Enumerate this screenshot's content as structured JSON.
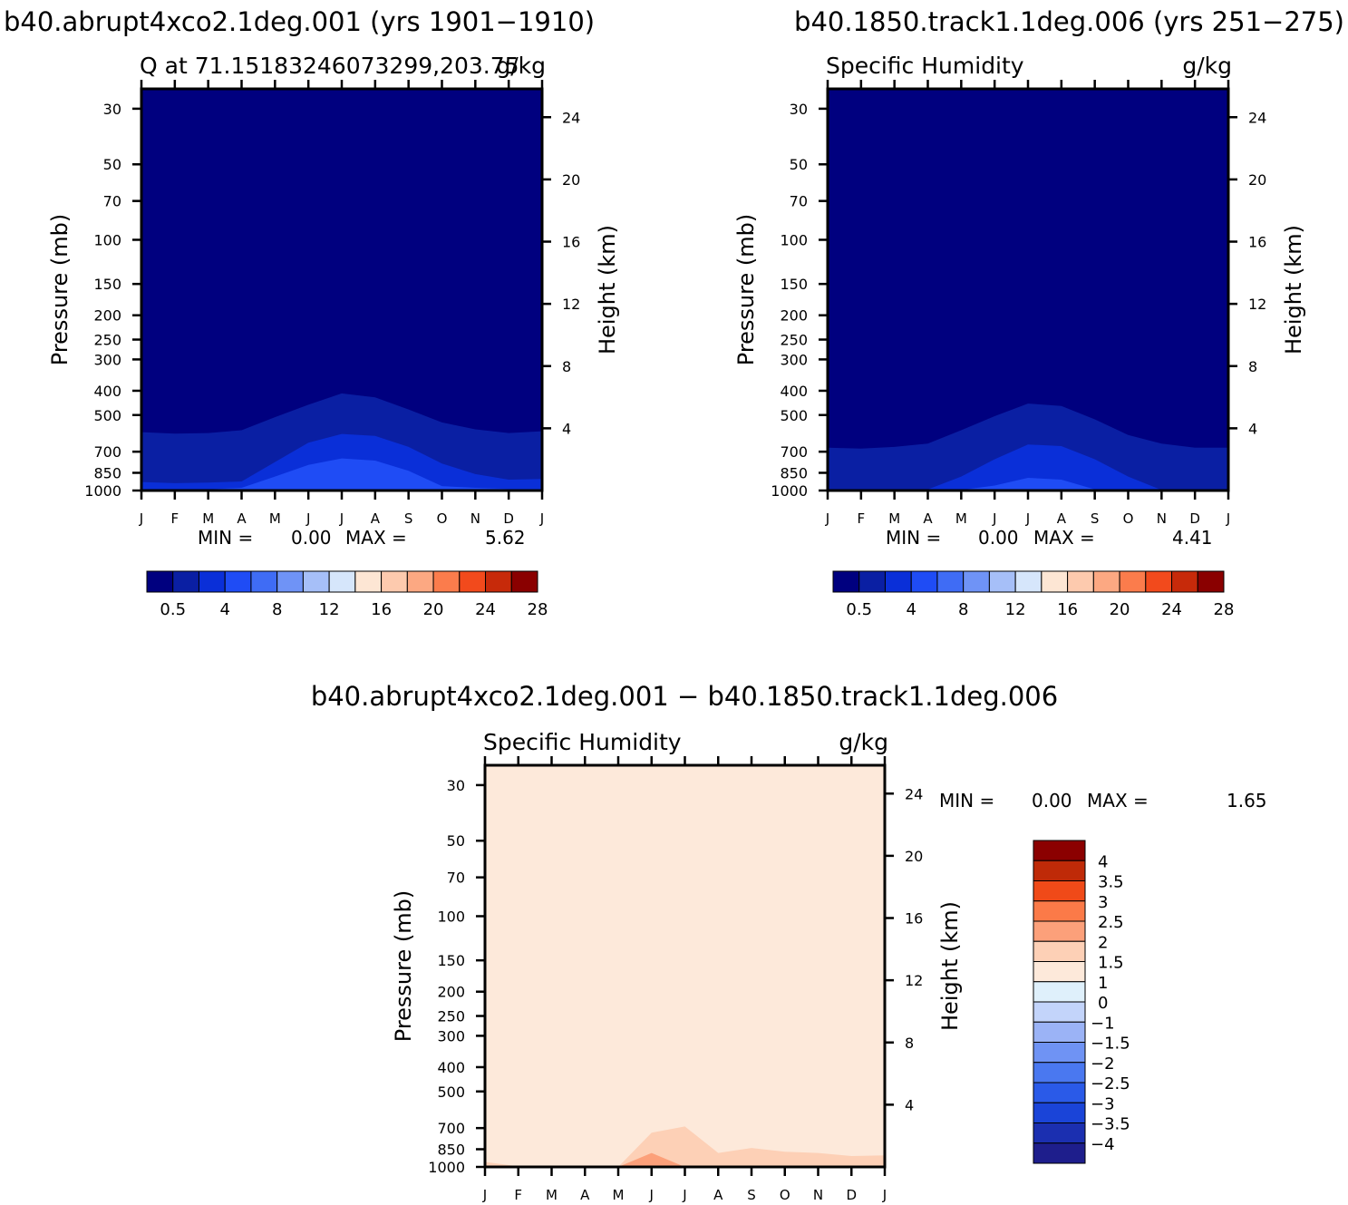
{
  "titles": {
    "left_header": "b40.abrupt4xco2.1deg.001 (yrs 1901−1910)",
    "right_header": "b40.1850.track1.1deg.006 (yrs 251−275)",
    "diff_header": "b40.abrupt4xco2.1deg.001 − b40.1850.track1.1deg.006"
  },
  "colors": {
    "background": "#ffffff",
    "axis": "#000000",
    "top_scale": [
      "#00007f",
      "#0a1fa3",
      "#0a2fd8",
      "#1f4cf5",
      "#3f6cf5",
      "#6f93f6",
      "#a6bff8",
      "#d6e6fb",
      "#fde6d4",
      "#fdcaae",
      "#fca882",
      "#fb7c4c",
      "#f24a1c",
      "#c72a0a",
      "#8a0000"
    ],
    "diff_scale": [
      "#1e1e8c",
      "#1b2fb0",
      "#1a44d8",
      "#2a5ae8",
      "#4a78f0",
      "#6f93f4",
      "#9bb3f6",
      "#c3d4fa",
      "#dff0fb",
      "#fde9da",
      "#fdd0b6",
      "#fca07a",
      "#fb7a48",
      "#f04a18",
      "#bf2a08",
      "#8b0000"
    ]
  },
  "chart_data": [
    {
      "id": "left",
      "type": "heatmap",
      "title": "Q at 71.15183246073299,203.75",
      "units": "g/kg",
      "ylabel": "Pressure (mb)",
      "ylabel_right": "Height (km)",
      "x_ticks": [
        "J",
        "F",
        "M",
        "A",
        "M",
        "J",
        "J",
        "A",
        "S",
        "O",
        "N",
        "D",
        "J"
      ],
      "y_ticks": [
        30,
        50,
        70,
        100,
        150,
        200,
        250,
        300,
        400,
        500,
        700,
        850,
        1000
      ],
      "y_scale": "log",
      "ylim": [
        1000,
        25
      ],
      "height_ticks": [
        4,
        8,
        12,
        16,
        20,
        24
      ],
      "min_label": "MIN =",
      "min_value": "0.00",
      "max_label": "MAX =",
      "max_value": "5.62",
      "fill_levels": [
        {
          "level": 0.5,
          "pressures": [
            585,
            593,
            590,
            575,
            510,
            455,
            410,
            425,
            475,
            535,
            570,
            590,
            580
          ]
        },
        {
          "level": 1,
          "pressures": [
            925,
            935,
            930,
            920,
            770,
            645,
            595,
            605,
            670,
            780,
            860,
            905,
            900
          ]
        },
        {
          "level": 2,
          "pressures": [
            985,
            995,
            990,
            975,
            880,
            790,
            745,
            760,
            835,
            960,
            975,
            985,
            985
          ]
        }
      ],
      "colorbar": {
        "labels": [
          "0.5",
          "4",
          "8",
          "12",
          "16",
          "20",
          "24",
          "28"
        ],
        "boxes": 15
      }
    },
    {
      "id": "right",
      "type": "heatmap",
      "title": "Specific Humidity",
      "units": "g/kg",
      "ylabel": "Pressure (mb)",
      "ylabel_right": "Height (km)",
      "x_ticks": [
        "J",
        "F",
        "M",
        "A",
        "M",
        "J",
        "J",
        "A",
        "S",
        "O",
        "N",
        "D",
        "J"
      ],
      "y_ticks": [
        30,
        50,
        70,
        100,
        150,
        200,
        250,
        300,
        400,
        500,
        700,
        850,
        1000
      ],
      "y_scale": "log",
      "ylim": [
        1000,
        25
      ],
      "height_ticks": [
        4,
        8,
        12,
        16,
        20,
        24
      ],
      "min_label": "MIN =",
      "min_value": "0.00",
      "max_label": "MAX =",
      "max_value": "4.41",
      "fill_levels": [
        {
          "level": 0.5,
          "pressures": [
            675,
            680,
            670,
            650,
            575,
            505,
            450,
            460,
            520,
            600,
            650,
            675,
            675
          ]
        },
        {
          "level": 1,
          "pressures": [
            995,
            998,
            995,
            990,
            880,
            750,
            655,
            665,
            750,
            880,
            995,
            998,
            995
          ]
        },
        {
          "level": 2,
          "pressures": [
            1000,
            1000,
            1000,
            1000,
            995,
            955,
            890,
            905,
            990,
            1000,
            1000,
            1000,
            1000
          ]
        }
      ],
      "colorbar": {
        "labels": [
          "0.5",
          "4",
          "8",
          "12",
          "16",
          "20",
          "24",
          "28"
        ],
        "boxes": 15
      }
    },
    {
      "id": "diff",
      "type": "heatmap",
      "title": "Specific Humidity",
      "units": "g/kg",
      "ylabel": "Pressure (mb)",
      "ylabel_right": "Height (km)",
      "x_ticks": [
        "J",
        "F",
        "M",
        "A",
        "M",
        "J",
        "J",
        "A",
        "S",
        "O",
        "N",
        "D",
        "J"
      ],
      "y_ticks": [
        30,
        50,
        70,
        100,
        150,
        200,
        250,
        300,
        400,
        500,
        700,
        850,
        1000
      ],
      "y_scale": "log",
      "ylim": [
        1000,
        25
      ],
      "height_ticks": [
        4,
        8,
        12,
        16,
        20,
        24
      ],
      "min_label": "MIN =",
      "min_value": "0.00",
      "max_label": "MAX =",
      "max_value": "1.65",
      "fill_levels": [
        {
          "level": 1,
          "pressures": [
            955,
            995,
            1000,
            1000,
            1000,
            730,
            690,
            880,
            840,
            870,
            880,
            905,
            900
          ]
        },
        {
          "level": 1.5,
          "pressures": [
            1000,
            1000,
            1000,
            1000,
            1000,
            880,
            1000,
            1000,
            1000,
            1000,
            1000,
            1000,
            1000
          ]
        }
      ],
      "colorbar": {
        "labels": [
          "4",
          "3.5",
          "3",
          "2.5",
          "2",
          "1.5",
          "1",
          "0",
          "−1",
          "−1.5",
          "−2",
          "−2.5",
          "−3",
          "−3.5",
          "−4"
        ],
        "boxes": 16
      }
    }
  ]
}
